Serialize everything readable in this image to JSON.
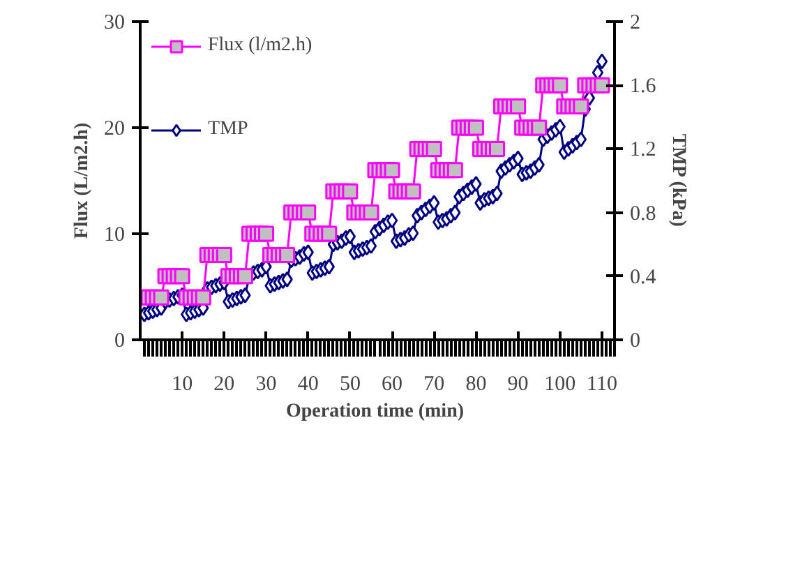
{
  "chart_data": {
    "type": "line",
    "xlabel": "Operation time  (min)",
    "ylabel": "Flux (L/m2.h)",
    "y2label": "TMP (kPa)",
    "x": [
      1,
      2,
      3,
      4,
      5,
      6,
      7,
      8,
      9,
      10,
      11,
      12,
      13,
      14,
      15,
      16,
      17,
      18,
      19,
      20,
      21,
      22,
      23,
      24,
      25,
      26,
      27,
      28,
      29,
      30,
      31,
      32,
      33,
      34,
      35,
      36,
      37,
      38,
      39,
      40,
      41,
      42,
      43,
      44,
      45,
      46,
      47,
      48,
      49,
      50,
      51,
      52,
      53,
      54,
      55,
      56,
      57,
      58,
      59,
      60,
      61,
      62,
      63,
      64,
      65,
      66,
      67,
      68,
      69,
      70,
      71,
      72,
      73,
      74,
      75,
      76,
      77,
      78,
      79,
      80,
      81,
      82,
      83,
      84,
      85,
      86,
      87,
      88,
      89,
      90,
      91,
      92,
      93,
      94,
      95,
      96,
      97,
      98,
      99,
      100,
      101,
      102,
      103,
      104,
      105,
      106,
      107,
      108,
      109,
      110
    ],
    "xlim": [
      0,
      113
    ],
    "xticks": [
      10,
      20,
      30,
      40,
      50,
      60,
      70,
      80,
      90,
      100,
      110
    ],
    "ylim": [
      0,
      30
    ],
    "yticks": [
      0,
      10,
      20,
      30
    ],
    "y2lim": [
      0,
      2
    ],
    "y2ticks": [
      0,
      0.4,
      0.8,
      1.2,
      1.6,
      2
    ],
    "grid": false,
    "legend": "top left",
    "series": [
      {
        "name": "Flux (l/m2.h)",
        "color": "#ff00ff",
        "marker": "square",
        "values": [
          4,
          4,
          4,
          4,
          4,
          6,
          6,
          6,
          6,
          6,
          4,
          4,
          4,
          4,
          4,
          8,
          8,
          8,
          8,
          8,
          6,
          6,
          6,
          6,
          6,
          10,
          10,
          10,
          10,
          10,
          8,
          8,
          8,
          8,
          8,
          12,
          12,
          12,
          12,
          12,
          10,
          10,
          10,
          10,
          10,
          14,
          14,
          14,
          14,
          14,
          12,
          12,
          12,
          12,
          12,
          16,
          16,
          16,
          16,
          16,
          14,
          14,
          14,
          14,
          14,
          18,
          18,
          18,
          18,
          18,
          16,
          16,
          16,
          16,
          16,
          20,
          20,
          20,
          20,
          20,
          18,
          18,
          18,
          18,
          18,
          22,
          22,
          22,
          22,
          22,
          20,
          20,
          20,
          20,
          20,
          24,
          24,
          24,
          24,
          24,
          22,
          22,
          22,
          22,
          22,
          24,
          24,
          24,
          24,
          24
        ]
      },
      {
        "name": "TMP",
        "color": "#000080",
        "marker": "diamond",
        "axis": "y2",
        "values": [
          0.16,
          0.17,
          0.18,
          0.19,
          0.2,
          0.24,
          0.25,
          0.26,
          0.27,
          0.28,
          0.16,
          0.17,
          0.18,
          0.19,
          0.2,
          0.32,
          0.33,
          0.34,
          0.35,
          0.36,
          0.24,
          0.25,
          0.26,
          0.27,
          0.28,
          0.4,
          0.42,
          0.43,
          0.44,
          0.46,
          0.34,
          0.35,
          0.36,
          0.37,
          0.38,
          0.5,
          0.51,
          0.52,
          0.54,
          0.55,
          0.42,
          0.43,
          0.44,
          0.45,
          0.46,
          0.6,
          0.61,
          0.62,
          0.64,
          0.65,
          0.55,
          0.56,
          0.57,
          0.58,
          0.59,
          0.68,
          0.7,
          0.72,
          0.74,
          0.75,
          0.62,
          0.63,
          0.64,
          0.66,
          0.67,
          0.78,
          0.8,
          0.82,
          0.84,
          0.86,
          0.74,
          0.75,
          0.76,
          0.78,
          0.8,
          0.9,
          0.92,
          0.94,
          0.96,
          0.98,
          0.86,
          0.88,
          0.89,
          0.9,
          0.92,
          1.06,
          1.08,
          1.1,
          1.12,
          1.14,
          1.04,
          1.05,
          1.06,
          1.08,
          1.1,
          1.26,
          1.28,
          1.3,
          1.32,
          1.34,
          1.18,
          1.2,
          1.22,
          1.24,
          1.26,
          1.45,
          1.52,
          1.6,
          1.68,
          1.75
        ]
      }
    ]
  }
}
